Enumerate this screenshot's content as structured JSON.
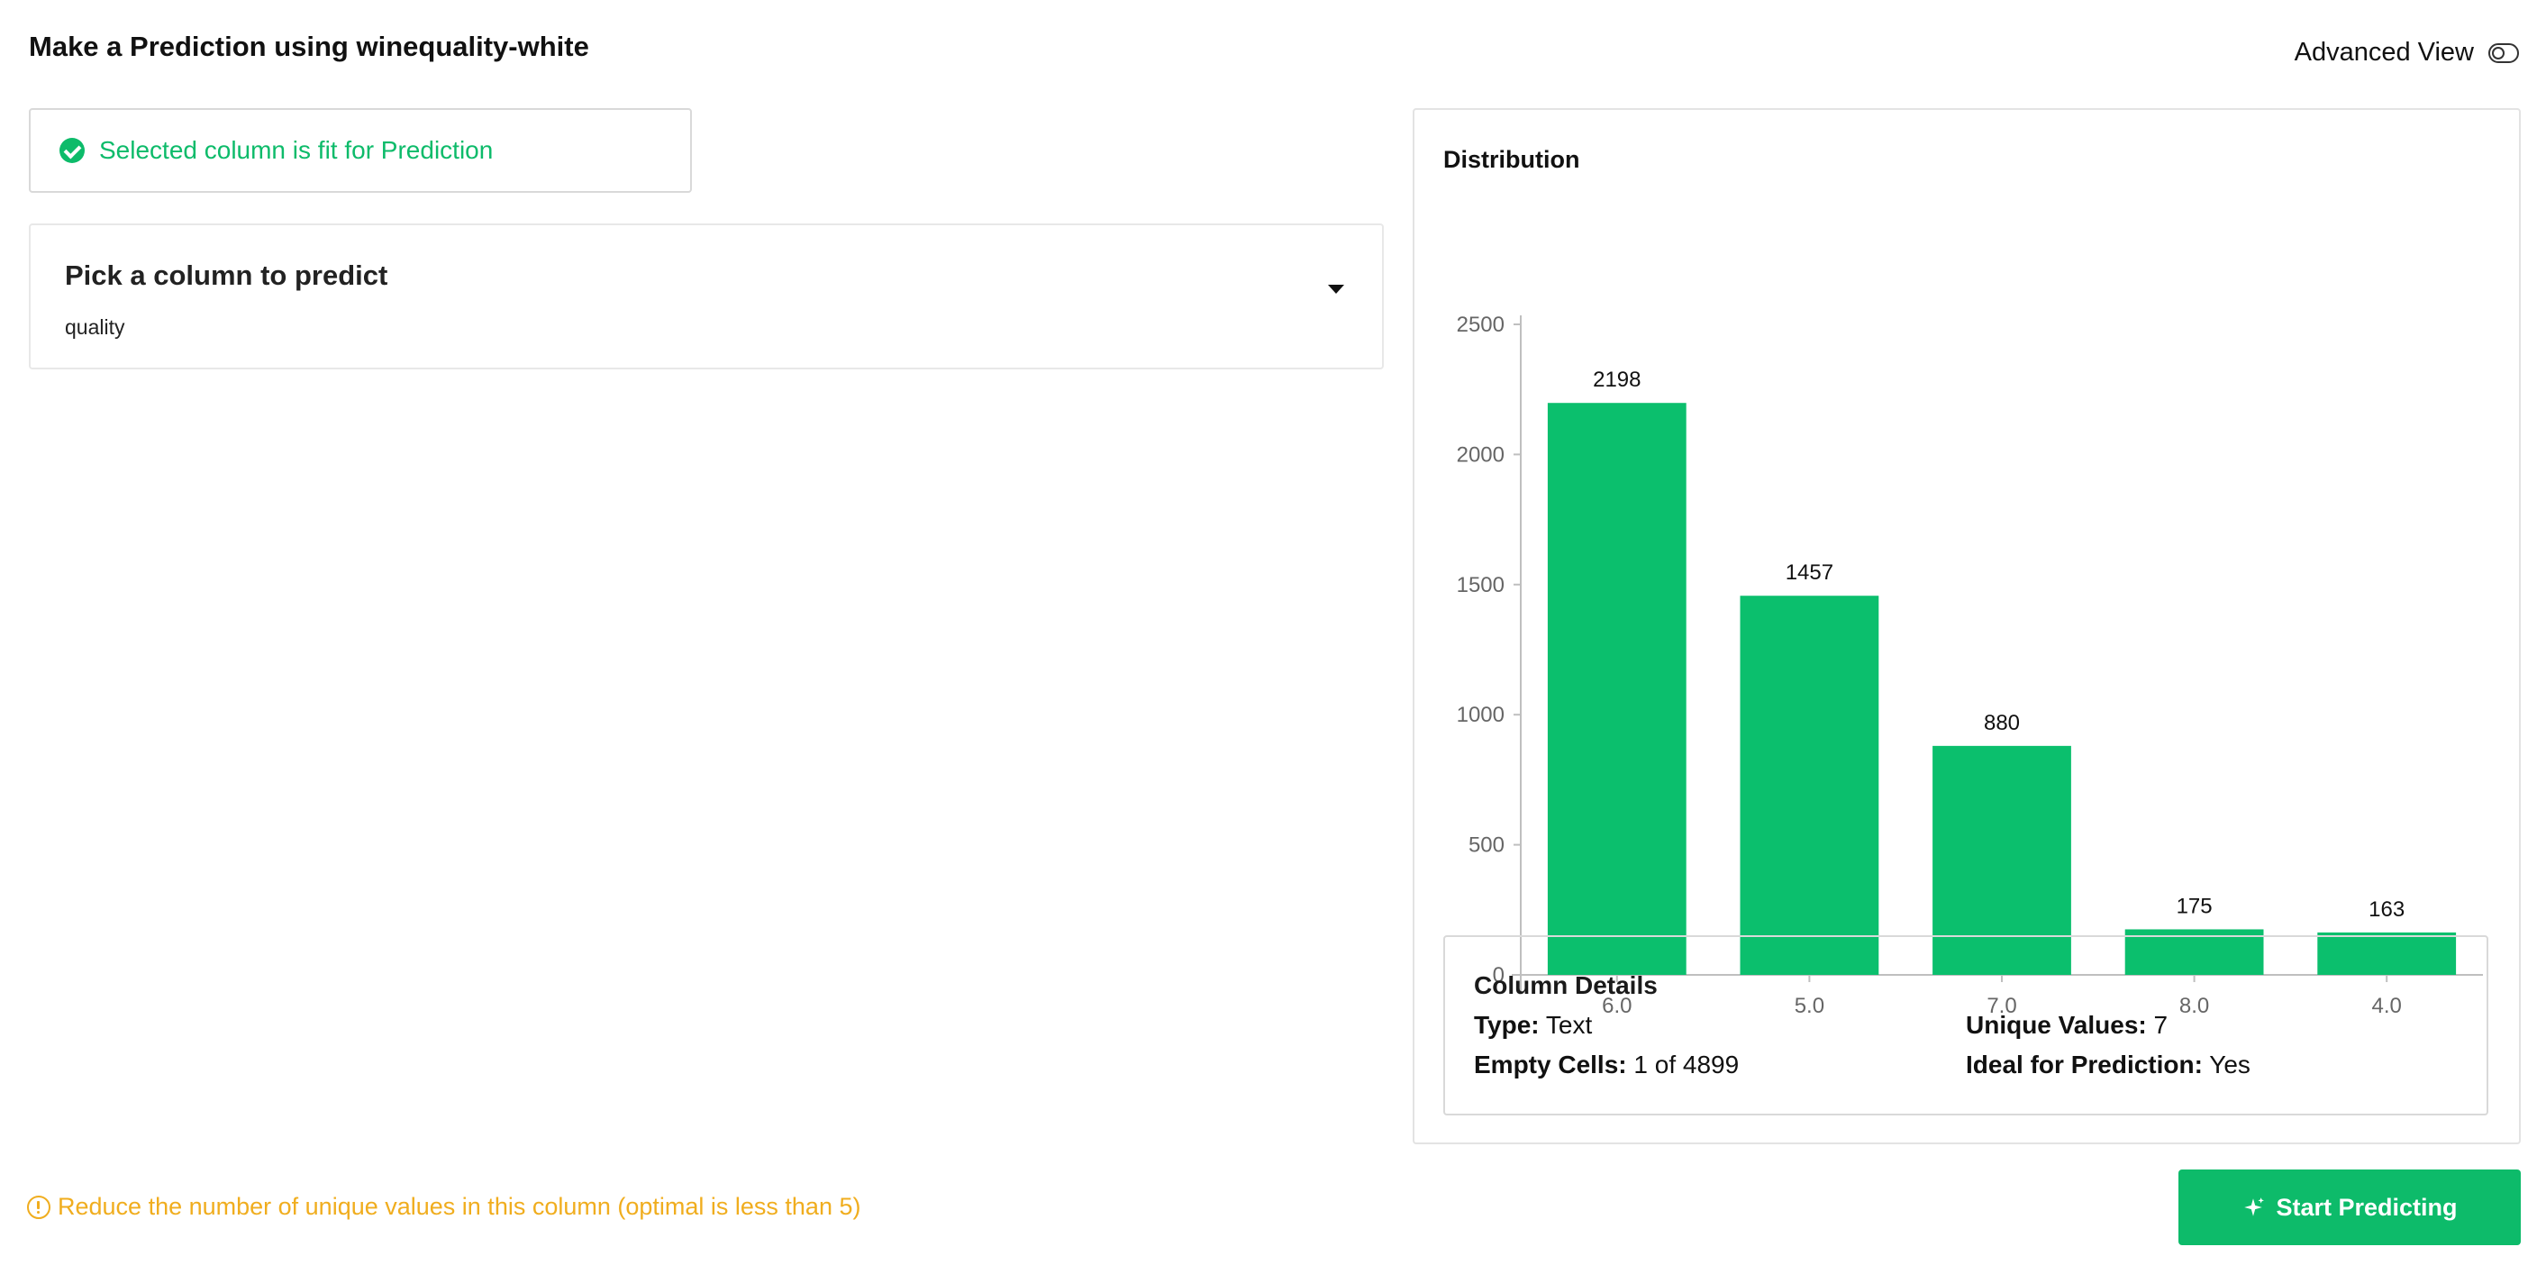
{
  "header": {
    "title": "Make a Prediction using winequality-white",
    "advanced_view_label": "Advanced View"
  },
  "status": {
    "message": "Selected column is fit for Prediction",
    "color": "#0dbb6a"
  },
  "picker": {
    "label": "Pick a column to predict",
    "value": "quality"
  },
  "distribution": {
    "title": "Distribution"
  },
  "chart_data": {
    "type": "bar",
    "categories": [
      "6.0",
      "5.0",
      "7.0",
      "8.0",
      "4.0"
    ],
    "values": [
      2198,
      1457,
      880,
      175,
      163
    ],
    "title": "",
    "xlabel": "",
    "ylabel": "",
    "ylim": [
      0,
      2500
    ],
    "yticks": [
      "2500",
      "2000",
      "1500",
      "1000",
      "500",
      "0"
    ],
    "grid": false,
    "bar_color": "#0bbf6d"
  },
  "column_details": {
    "title": "Column Details",
    "type_label": "Type:",
    "type_value": "Text",
    "unique_label": "Unique Values:",
    "unique_value": "7",
    "empty_label": "Empty Cells:",
    "empty_value": "1 of 4899",
    "ideal_label": "Ideal for Prediction:",
    "ideal_value": "Yes"
  },
  "footer": {
    "warning": "Reduce the number of unique values in this column (optimal is less than 5)",
    "warning_color": "#f0ad1e",
    "start_button": "Start Predicting",
    "start_button_icon": "sparkle-icon"
  }
}
